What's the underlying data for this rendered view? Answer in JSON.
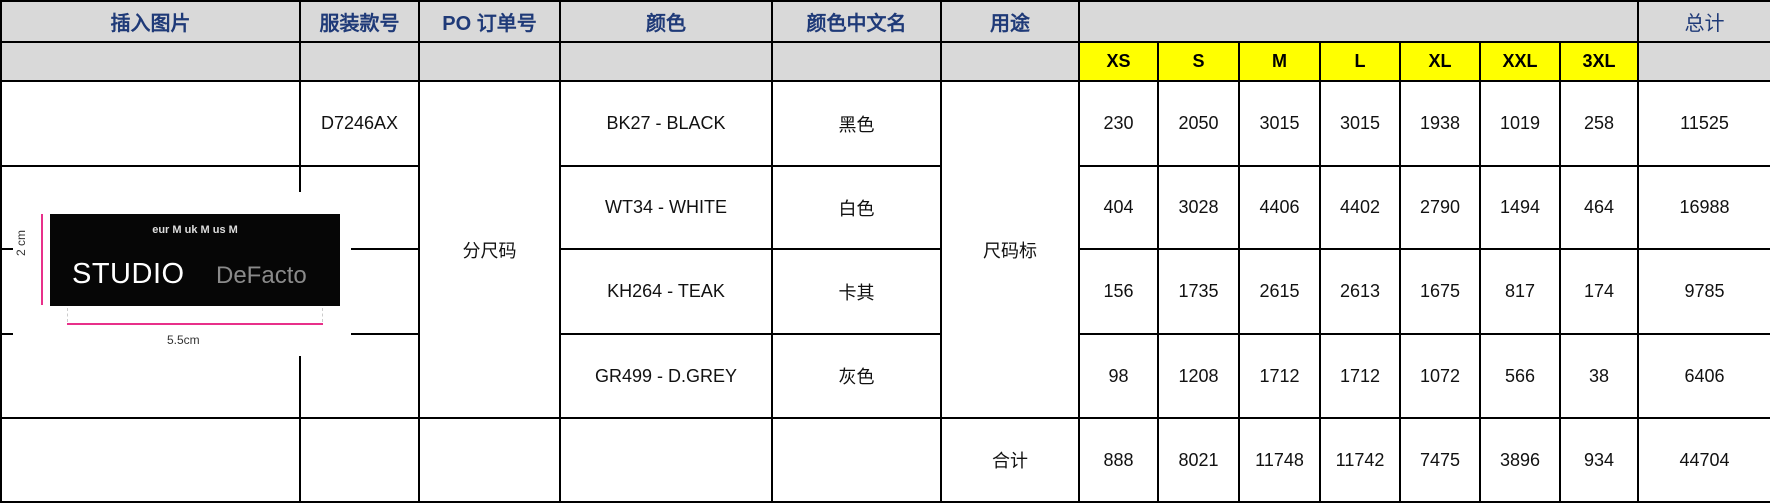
{
  "headers": {
    "image": "插入图片",
    "style_no": "服装款号",
    "po": "PO 订单号",
    "color": "颜色",
    "color_cn": "颜色中文名",
    "usage": "用途",
    "total": "总计"
  },
  "sizes": [
    "XS",
    "S",
    "M",
    "L",
    "XL",
    "XXL",
    "3XL"
  ],
  "style_no": "D7246AX",
  "po_value": "分尺码",
  "usage_value": "尺码标",
  "rows": [
    {
      "color": "BK27 - BLACK",
      "color_cn": "黑色",
      "qty": [
        "230",
        "2050",
        "3015",
        "3015",
        "1938",
        "1019",
        "258"
      ],
      "total": "11525"
    },
    {
      "color": "WT34 - WHITE",
      "color_cn": "白色",
      "qty": [
        "404",
        "3028",
        "4406",
        "4402",
        "2790",
        "1494",
        "464"
      ],
      "total": "16988"
    },
    {
      "color": "KH264 - TEAK",
      "color_cn": "卡其",
      "qty": [
        "156",
        "1735",
        "2615",
        "2613",
        "1675",
        "817",
        "174"
      ],
      "total": "9785"
    },
    {
      "color": "GR499 - D.GREY",
      "color_cn": "灰色",
      "qty": [
        "98",
        "1208",
        "1712",
        "1712",
        "1072",
        "566",
        "38"
      ],
      "total": "6406"
    }
  ],
  "sum": {
    "label": "合计",
    "qty": [
      "888",
      "8021",
      "11748",
      "11742",
      "7475",
      "3896",
      "934"
    ],
    "total": "44704"
  },
  "label_image": {
    "sizes_text": "eur M  uk M  us M",
    "brand1": "STUDIO",
    "brand2": "DeFacto",
    "width": "5.5cm",
    "height": "2 cm"
  }
}
